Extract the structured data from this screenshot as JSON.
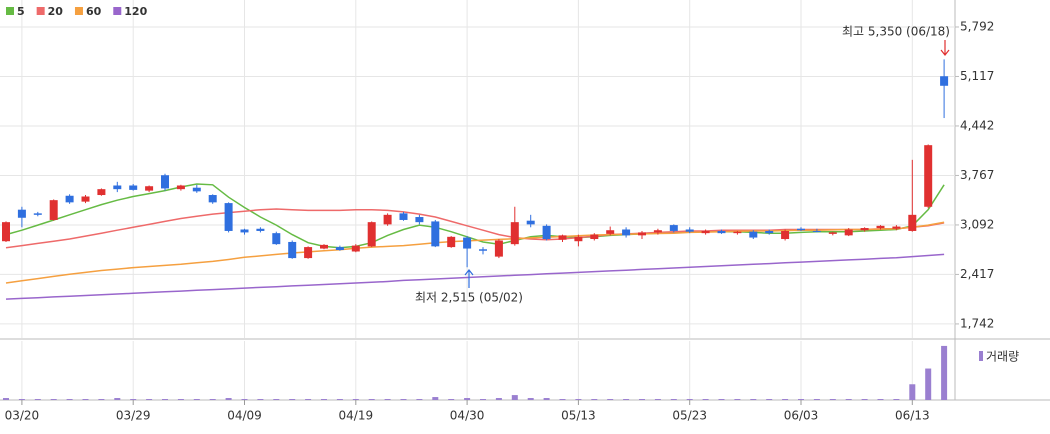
{
  "chart_data": {
    "type": "candlestick",
    "up_color": "#e03030",
    "down_color": "#2f6fdf",
    "categories": [
      null,
      "03/20",
      null,
      null,
      null,
      null,
      null,
      null,
      "03/29",
      null,
      null,
      null,
      null,
      null,
      null,
      "04/09",
      null,
      null,
      null,
      null,
      null,
      null,
      "04/19",
      null,
      null,
      null,
      null,
      null,
      null,
      "04/30",
      null,
      null,
      null,
      null,
      null,
      null,
      "05/13",
      null,
      null,
      null,
      null,
      null,
      null,
      "05/23",
      null,
      null,
      null,
      null,
      null,
      null,
      "06/03",
      null,
      null,
      null,
      null,
      null,
      null,
      "06/13",
      null,
      null
    ],
    "open": [
      2870,
      3300,
      3250,
      3160,
      3490,
      3410,
      3500,
      3630,
      3630,
      3560,
      3770,
      3580,
      3600,
      3500,
      3390,
      3030,
      3040,
      2980,
      2860,
      2640,
      2770,
      2790,
      2730,
      2800,
      3100,
      3250,
      3200,
      3140,
      2790,
      2920,
      2760,
      2660,
      2830,
      3150,
      3080,
      2890,
      2870,
      2900,
      2970,
      3030,
      2950,
      2990,
      3090,
      3030,
      2980,
      3010,
      2980,
      3000,
      3010,
      2900,
      3040,
      3010,
      2970,
      2950,
      3020,
      3050,
      3040,
      3010,
      3340,
      5120
    ],
    "high": [
      3140,
      3340,
      3270,
      3440,
      3510,
      3500,
      3590,
      3680,
      3650,
      3630,
      3790,
      3640,
      3640,
      3510,
      3400,
      3040,
      3060,
      3000,
      2880,
      2800,
      2830,
      2810,
      2830,
      3140,
      3250,
      3270,
      3230,
      3160,
      2940,
      2940,
      2790,
      2900,
      3340,
      3230,
      3100,
      2960,
      2960,
      2980,
      3070,
      3060,
      3010,
      3040,
      3100,
      3060,
      3030,
      3030,
      3010,
      3020,
      3030,
      3030,
      3060,
      3040,
      3000,
      3050,
      3060,
      3090,
      3090,
      3980,
      4190,
      5350
    ],
    "low": [
      2860,
      3060,
      3210,
      3150,
      3380,
      3390,
      3490,
      3540,
      3560,
      3540,
      3560,
      3560,
      3530,
      3380,
      2990,
      2960,
      2990,
      2820,
      2630,
      2630,
      2760,
      2740,
      2720,
      2790,
      3080,
      3150,
      3100,
      2790,
      2780,
      2515,
      2690,
      2640,
      2810,
      3060,
      2880,
      2860,
      2800,
      2880,
      2950,
      2920,
      2900,
      2960,
      2990,
      2980,
      2960,
      2970,
      2960,
      2900,
      2960,
      2880,
      3010,
      2990,
      2950,
      2940,
      3000,
      3030,
      3020,
      3000,
      3320,
      4550
    ],
    "close": [
      3130,
      3190,
      3230,
      3430,
      3400,
      3480,
      3580,
      3580,
      3570,
      3620,
      3590,
      3630,
      3550,
      3400,
      3010,
      2990,
      3010,
      2830,
      2640,
      2790,
      2820,
      2750,
      2810,
      3130,
      3230,
      3160,
      3130,
      2800,
      2930,
      2770,
      2740,
      2880,
      3130,
      3100,
      2900,
      2950,
      2930,
      2960,
      3020,
      2950,
      2990,
      3020,
      3010,
      3000,
      3010,
      2980,
      3000,
      2920,
      2980,
      3010,
      3020,
      3000,
      2990,
      3030,
      3050,
      3080,
      3070,
      3230,
      4180,
      4990
    ],
    "series": [
      {
        "name": "5",
        "color": "#66bb44",
        "values": [
          2960,
          3020,
          3090,
          3160,
          3230,
          3300,
          3370,
          3430,
          3480,
          3520,
          3560,
          3610,
          3650,
          3640,
          3470,
          3330,
          3200,
          3090,
          2960,
          2850,
          2800,
          2780,
          2800,
          2850,
          2950,
          3030,
          3090,
          3060,
          3000,
          2930,
          2860,
          2830,
          2880,
          2930,
          2950,
          2930,
          2920,
          2930,
          2950,
          2960,
          2970,
          2980,
          2990,
          3000,
          3000,
          3000,
          3000,
          2990,
          2980,
          2980,
          2990,
          3000,
          3000,
          3000,
          3010,
          3020,
          3030,
          3080,
          3300,
          3640
        ]
      },
      {
        "name": "20",
        "color": "#ee6a6a",
        "values": [
          2780,
          2810,
          2840,
          2870,
          2900,
          2940,
          2980,
          3020,
          3060,
          3100,
          3140,
          3180,
          3210,
          3240,
          3260,
          3280,
          3300,
          3310,
          3300,
          3290,
          3290,
          3290,
          3300,
          3300,
          3290,
          3270,
          3240,
          3200,
          3140,
          3080,
          3020,
          2960,
          2920,
          2900,
          2890,
          2900,
          2920,
          2940,
          2960,
          2970,
          2980,
          2990,
          3000,
          3010,
          3010,
          3020,
          3020,
          3020,
          3020,
          3030,
          3030,
          3030,
          3030,
          3030,
          3030,
          3040,
          3040,
          3060,
          3080,
          3120
        ]
      },
      {
        "name": "60",
        "color": "#f5a040",
        "values": [
          2300,
          2330,
          2360,
          2390,
          2420,
          2445,
          2470,
          2490,
          2510,
          2525,
          2540,
          2555,
          2575,
          2595,
          2620,
          2650,
          2670,
          2690,
          2710,
          2725,
          2740,
          2755,
          2775,
          2790,
          2800,
          2810,
          2830,
          2850,
          2865,
          2875,
          2885,
          2895,
          2905,
          2915,
          2925,
          2935,
          2945,
          2955,
          2960,
          2965,
          2970,
          2975,
          2980,
          2990,
          2995,
          3000,
          3005,
          3010,
          3010,
          3015,
          3020,
          3020,
          3025,
          3030,
          3030,
          3035,
          3040,
          3060,
          3090,
          3130
        ]
      },
      {
        "name": "120",
        "color": "#9966cc",
        "values": [
          2080,
          2090,
          2100,
          2110,
          2120,
          2130,
          2140,
          2150,
          2160,
          2170,
          2180,
          2190,
          2200,
          2210,
          2220,
          2230,
          2240,
          2250,
          2260,
          2270,
          2280,
          2290,
          2300,
          2310,
          2320,
          2335,
          2345,
          2355,
          2365,
          2375,
          2385,
          2395,
          2405,
          2415,
          2425,
          2435,
          2445,
          2455,
          2465,
          2475,
          2485,
          2495,
          2505,
          2515,
          2525,
          2535,
          2545,
          2555,
          2565,
          2575,
          2585,
          2595,
          2605,
          2615,
          2625,
          2635,
          2645,
          2660,
          2675,
          2690
        ]
      }
    ],
    "volume": {
      "name": "거래량",
      "color": "#9a7fd0",
      "ylim": [
        0,
        60
      ],
      "values": [
        2,
        1,
        1,
        1,
        1,
        1,
        1,
        2,
        1,
        1,
        1,
        1,
        1,
        1,
        2,
        1,
        1,
        1,
        1,
        1,
        1,
        1,
        1,
        1,
        1,
        1,
        1,
        3,
        1,
        2,
        1,
        2,
        5,
        2,
        2,
        1,
        1,
        1,
        1,
        1,
        1,
        1,
        1,
        1,
        1,
        1,
        1,
        1,
        1,
        1,
        1,
        1,
        1,
        1,
        1,
        1,
        1,
        16,
        32,
        55
      ]
    },
    "ylim": [
      1550,
      6160
    ],
    "yticks": [
      {
        "value": 1742,
        "label": "1,742"
      },
      {
        "value": 2417,
        "label": "2,417"
      },
      {
        "value": 3092,
        "label": "3,092"
      },
      {
        "value": 3767,
        "label": "3,767"
      },
      {
        "value": 4442,
        "label": "4,442"
      },
      {
        "value": 5117,
        "label": "5,117"
      },
      {
        "value": 5792,
        "label": "5,792"
      }
    ],
    "grid": true,
    "annotations": [
      {
        "text": "최고 5,350 (06/18)",
        "color": "#e03030"
      },
      {
        "text": "최저 2,515 (05/02)",
        "color": "#2f6fdf"
      }
    ]
  }
}
